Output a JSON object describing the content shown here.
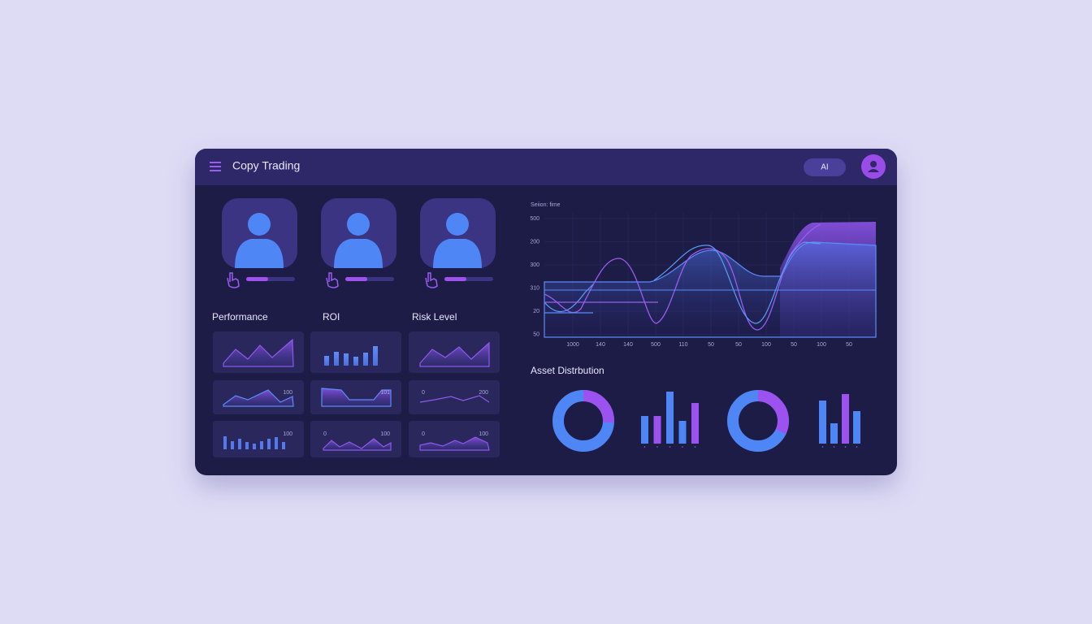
{
  "header": {
    "title": "Copy Trading",
    "button": "AI"
  },
  "sections": [
    "Performance",
    "ROI",
    "Risk Level"
  ],
  "mini_cards": [
    [
      [],
      [],
      []
    ],
    [
      [
        "100"
      ],
      [
        "101"
      ],
      [
        "0",
        "200"
      ]
    ],
    [
      [
        "100"
      ],
      [
        "0",
        "100"
      ],
      [
        "0",
        "100"
      ]
    ]
  ],
  "timeline": {
    "title": "Seiion: fime",
    "y_labels": [
      "500",
      "200",
      "300",
      "310",
      "20",
      "50"
    ],
    "x_labels": [
      "1000",
      "140",
      "140",
      "500",
      "110",
      "50",
      "50",
      "100",
      "50",
      "100",
      "50"
    ]
  },
  "assets": {
    "title": "Asset Distrbution"
  }
}
